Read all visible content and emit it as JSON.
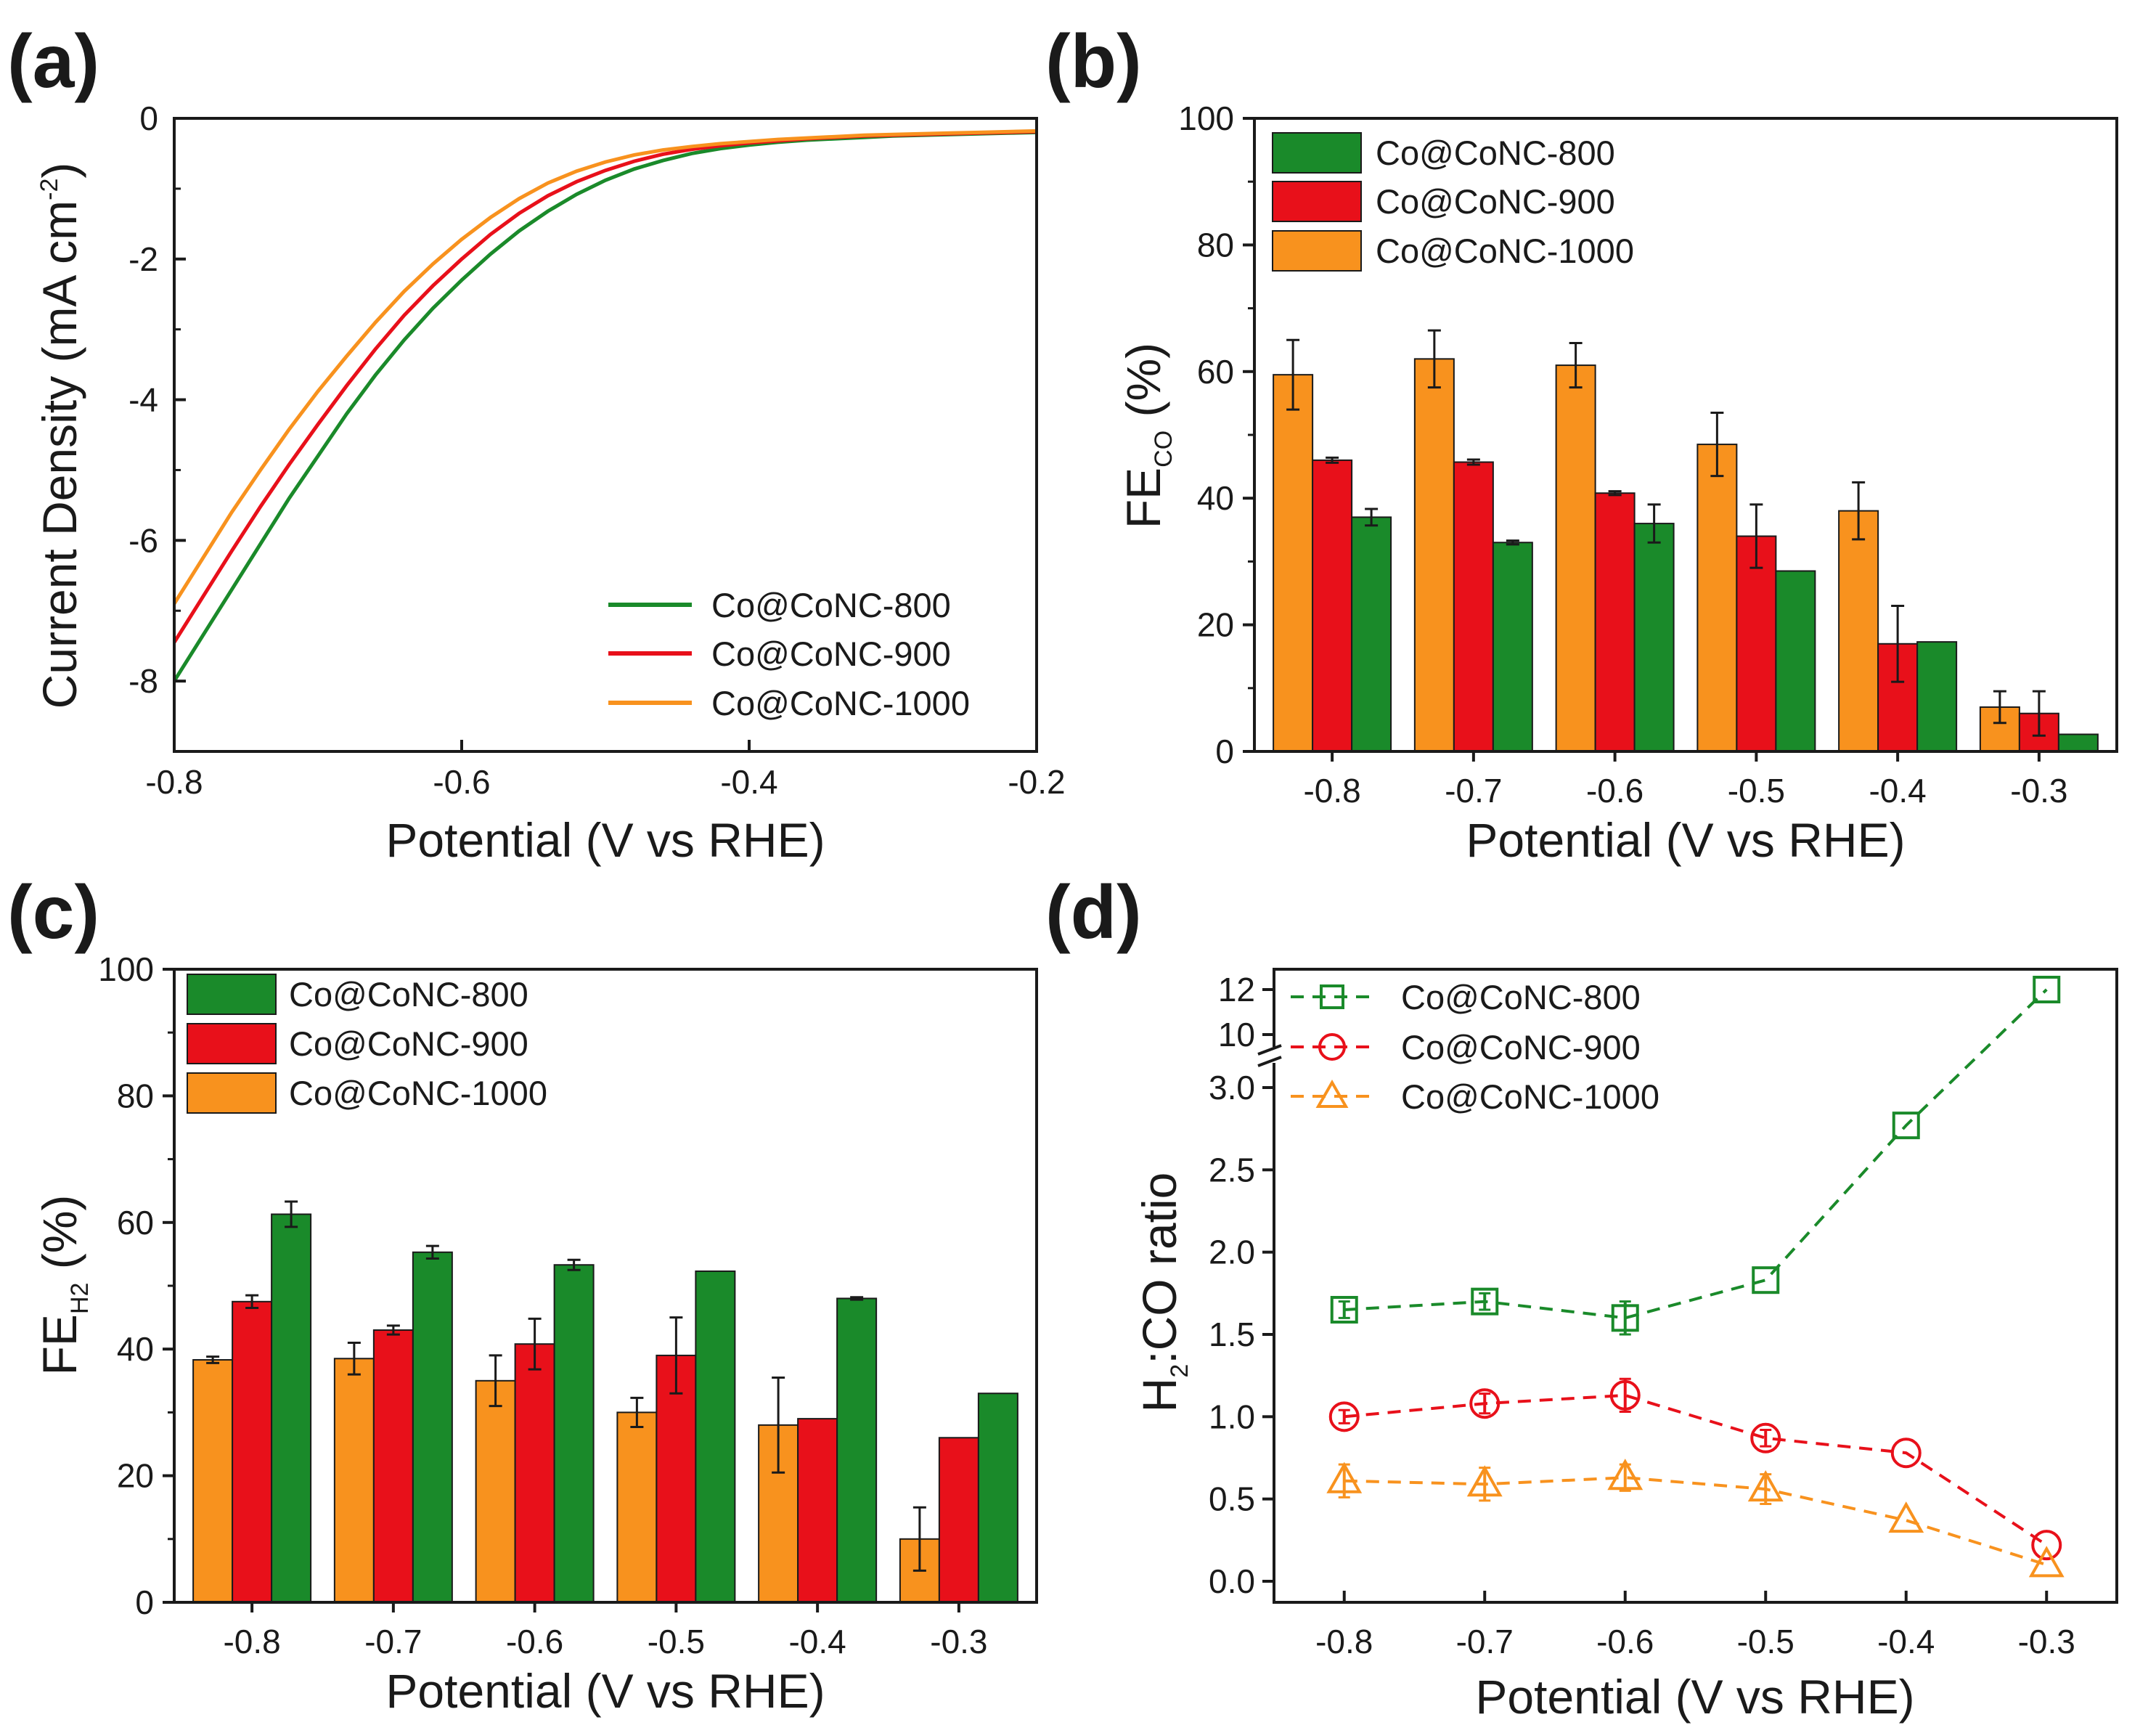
{
  "colors": {
    "c800": "#1a8a2a",
    "c900": "#e8101a",
    "c1000": "#f8921e",
    "axis": "#1a1a1a"
  },
  "panels": {
    "a": "(a)",
    "b": "(b)",
    "c": "(c)",
    "d": "(d)"
  },
  "chart_data": [
    {
      "id": "a",
      "type": "line",
      "title": "",
      "xlabel": "Potential (V vs RHE)",
      "ylabel_main": "Current Density (mA cm",
      "ylabel_sup": "-2",
      "ylabel_close": ")",
      "xlim": [
        -0.8,
        -0.2
      ],
      "ylim": [
        -9,
        0
      ],
      "xticks": [
        -0.8,
        -0.6,
        -0.4,
        -0.2
      ],
      "xtick_labels": [
        "-0.8",
        "-0.6",
        "-0.4",
        "-0.2"
      ],
      "yticks": [
        0,
        -2,
        -4,
        -6,
        -8
      ],
      "ytick_labels": [
        "0",
        "-2",
        "-4",
        "-6",
        "-8"
      ],
      "legend": [
        "Co@CoNC-800",
        "Co@CoNC-900",
        "Co@CoNC-1000"
      ],
      "legend_position": "bottom-right",
      "series": [
        {
          "name": "Co@CoNC-800",
          "color_key": "c800",
          "x": [
            -0.8,
            -0.78,
            -0.76,
            -0.74,
            -0.72,
            -0.7,
            -0.68,
            -0.66,
            -0.64,
            -0.62,
            -0.6,
            -0.58,
            -0.56,
            -0.54,
            -0.52,
            -0.5,
            -0.48,
            -0.46,
            -0.44,
            -0.42,
            -0.4,
            -0.38,
            -0.36,
            -0.34,
            -0.32,
            -0.3,
            -0.28,
            -0.26,
            -0.24,
            -0.22,
            -0.2
          ],
          "y": [
            -8.0,
            -7.35,
            -6.7,
            -6.05,
            -5.4,
            -4.8,
            -4.2,
            -3.65,
            -3.15,
            -2.7,
            -2.3,
            -1.93,
            -1.6,
            -1.32,
            -1.08,
            -0.88,
            -0.72,
            -0.6,
            -0.5,
            -0.43,
            -0.38,
            -0.34,
            -0.31,
            -0.29,
            -0.27,
            -0.25,
            -0.24,
            -0.23,
            -0.22,
            -0.21,
            -0.2
          ]
        },
        {
          "name": "Co@CoNC-900",
          "color_key": "c900",
          "x": [
            -0.8,
            -0.78,
            -0.76,
            -0.74,
            -0.72,
            -0.7,
            -0.68,
            -0.66,
            -0.64,
            -0.62,
            -0.6,
            -0.58,
            -0.56,
            -0.54,
            -0.52,
            -0.5,
            -0.48,
            -0.46,
            -0.44,
            -0.42,
            -0.4,
            -0.38,
            -0.36,
            -0.34,
            -0.32,
            -0.3,
            -0.28,
            -0.26,
            -0.24,
            -0.22,
            -0.2
          ],
          "y": [
            -7.45,
            -6.8,
            -6.15,
            -5.52,
            -4.92,
            -4.35,
            -3.8,
            -3.28,
            -2.8,
            -2.38,
            -2.0,
            -1.65,
            -1.35,
            -1.1,
            -0.9,
            -0.74,
            -0.61,
            -0.51,
            -0.44,
            -0.39,
            -0.35,
            -0.32,
            -0.29,
            -0.27,
            -0.25,
            -0.24,
            -0.23,
            -0.22,
            -0.21,
            -0.2,
            -0.19
          ]
        },
        {
          "name": "Co@CoNC-1000",
          "color_key": "c1000",
          "x": [
            -0.8,
            -0.78,
            -0.76,
            -0.74,
            -0.72,
            -0.7,
            -0.68,
            -0.66,
            -0.64,
            -0.62,
            -0.6,
            -0.58,
            -0.56,
            -0.54,
            -0.52,
            -0.5,
            -0.48,
            -0.46,
            -0.44,
            -0.42,
            -0.4,
            -0.38,
            -0.36,
            -0.34,
            -0.32,
            -0.3,
            -0.28,
            -0.26,
            -0.24,
            -0.22,
            -0.2
          ],
          "y": [
            -6.9,
            -6.25,
            -5.6,
            -5.0,
            -4.42,
            -3.88,
            -3.38,
            -2.9,
            -2.46,
            -2.07,
            -1.72,
            -1.41,
            -1.14,
            -0.92,
            -0.75,
            -0.62,
            -0.52,
            -0.45,
            -0.4,
            -0.36,
            -0.33,
            -0.3,
            -0.28,
            -0.26,
            -0.24,
            -0.23,
            -0.22,
            -0.21,
            -0.2,
            -0.19,
            -0.18
          ]
        }
      ]
    },
    {
      "id": "b",
      "type": "bar",
      "xlabel": "Potential (V vs RHE)",
      "ylabel_main": "FE",
      "ylabel_sub": "CO",
      "ylabel_close": " (%)",
      "categories": [
        "-0.8",
        "-0.7",
        "-0.6",
        "-0.5",
        "-0.4",
        "-0.3"
      ],
      "ylim": [
        0,
        100
      ],
      "yticks": [
        0,
        20,
        40,
        60,
        80,
        100
      ],
      "ytick_labels": [
        "0",
        "20",
        "40",
        "60",
        "80",
        "100"
      ],
      "legend_position": "top-left",
      "legend_order": [
        "Co@CoNC-800",
        "Co@CoNC-900",
        "Co@CoNC-1000"
      ],
      "series": [
        {
          "name": "Co@CoNC-1000",
          "color_key": "c1000",
          "values": [
            59.5,
            62.0,
            61.0,
            48.5,
            38.0,
            7.0
          ],
          "errors": [
            5.5,
            4.5,
            3.5,
            5.0,
            4.5,
            2.5
          ]
        },
        {
          "name": "Co@CoNC-900",
          "color_key": "c900",
          "values": [
            46.0,
            45.7,
            40.8,
            34.0,
            17.0,
            6.0
          ],
          "errors": [
            0.4,
            0.4,
            0.3,
            5.0,
            6.0,
            3.5
          ]
        },
        {
          "name": "Co@CoNC-800",
          "color_key": "c800",
          "values": [
            37.0,
            33.0,
            36.0,
            28.5,
            17.3,
            2.7
          ],
          "errors": [
            1.3,
            0.3,
            3.0,
            0,
            0,
            0
          ]
        }
      ]
    },
    {
      "id": "c",
      "type": "bar",
      "xlabel": "Potential (V vs RHE)",
      "ylabel_main": "FE",
      "ylabel_sub": "H2",
      "ylabel_close": " (%)",
      "categories": [
        "-0.8",
        "-0.7",
        "-0.6",
        "-0.5",
        "-0.4",
        "-0.3"
      ],
      "ylim": [
        0,
        100
      ],
      "yticks": [
        0,
        20,
        40,
        60,
        80,
        100
      ],
      "ytick_labels": [
        "0",
        "20",
        "40",
        "60",
        "80",
        "100"
      ],
      "legend_position": "top-left",
      "legend_order": [
        "Co@CoNC-800",
        "Co@CoNC-900",
        "Co@CoNC-1000"
      ],
      "series": [
        {
          "name": "Co@CoNC-1000",
          "color_key": "c1000",
          "values": [
            38.3,
            38.5,
            35.0,
            30.0,
            28.0,
            10.0
          ],
          "errors": [
            0.5,
            2.5,
            4.0,
            2.3,
            7.5,
            5.0
          ]
        },
        {
          "name": "Co@CoNC-900",
          "color_key": "c900",
          "values": [
            47.5,
            43.0,
            40.8,
            39.0,
            29.0,
            26.0
          ],
          "errors": [
            1.0,
            0.7,
            4.0,
            6.0,
            0,
            0
          ]
        },
        {
          "name": "Co@CoNC-800",
          "color_key": "c800",
          "values": [
            61.3,
            55.3,
            53.3,
            52.3,
            48.0,
            33.0
          ],
          "errors": [
            2.0,
            1.0,
            0.8,
            0,
            0.2,
            0
          ]
        }
      ]
    },
    {
      "id": "d",
      "type": "scatter",
      "xlabel": "Potential (V vs RHE)",
      "ylabel_main": "H",
      "ylabel_sub": "2",
      "ylabel_close": ":CO ratio",
      "x": [
        -0.8,
        -0.7,
        -0.6,
        -0.5,
        -0.4,
        -0.3
      ],
      "xlim": [
        -0.85,
        -0.25
      ],
      "xticks": [
        -0.8,
        -0.7,
        -0.6,
        -0.5,
        -0.4,
        -0.3
      ],
      "xtick_labels": [
        "-0.8",
        "-0.7",
        "-0.6",
        "-0.5",
        "-0.4",
        "-0.3"
      ],
      "ylim": [
        -0.05,
        3.25
      ],
      "y_break": {
        "lower_max": 3.2,
        "upper_range": [
          10,
          12
        ]
      },
      "yticks": [
        0.0,
        0.5,
        1.0,
        1.5,
        2.0,
        2.5,
        3.0
      ],
      "ytick_labels": [
        "0.0",
        "0.5",
        "1.0",
        "1.5",
        "2.0",
        "2.5",
        "3.0"
      ],
      "upper_ticks": [
        10,
        12
      ],
      "upper_tick_labels": [
        "10",
        "12"
      ],
      "legend_position": "top-left",
      "series": [
        {
          "name": "Co@CoNC-800",
          "marker": "square",
          "color_key": "c800",
          "values": [
            1.65,
            1.7,
            1.6,
            1.83,
            2.77,
            12.0
          ],
          "errors": [
            0.05,
            0.05,
            0.1,
            0,
            0,
            0
          ]
        },
        {
          "name": "Co@CoNC-900",
          "marker": "circle",
          "color_key": "c900",
          "values": [
            1.0,
            1.08,
            1.13,
            0.87,
            0.78,
            0.22
          ],
          "errors": [
            0.04,
            0.06,
            0.1,
            0.05,
            0,
            0
          ]
        },
        {
          "name": "Co@CoNC-1000",
          "marker": "triangle",
          "color_key": "c1000",
          "values": [
            0.61,
            0.59,
            0.63,
            0.56,
            0.37,
            0.1
          ],
          "errors": [
            0.1,
            0.1,
            0.08,
            0.09,
            0,
            0
          ]
        }
      ]
    }
  ]
}
